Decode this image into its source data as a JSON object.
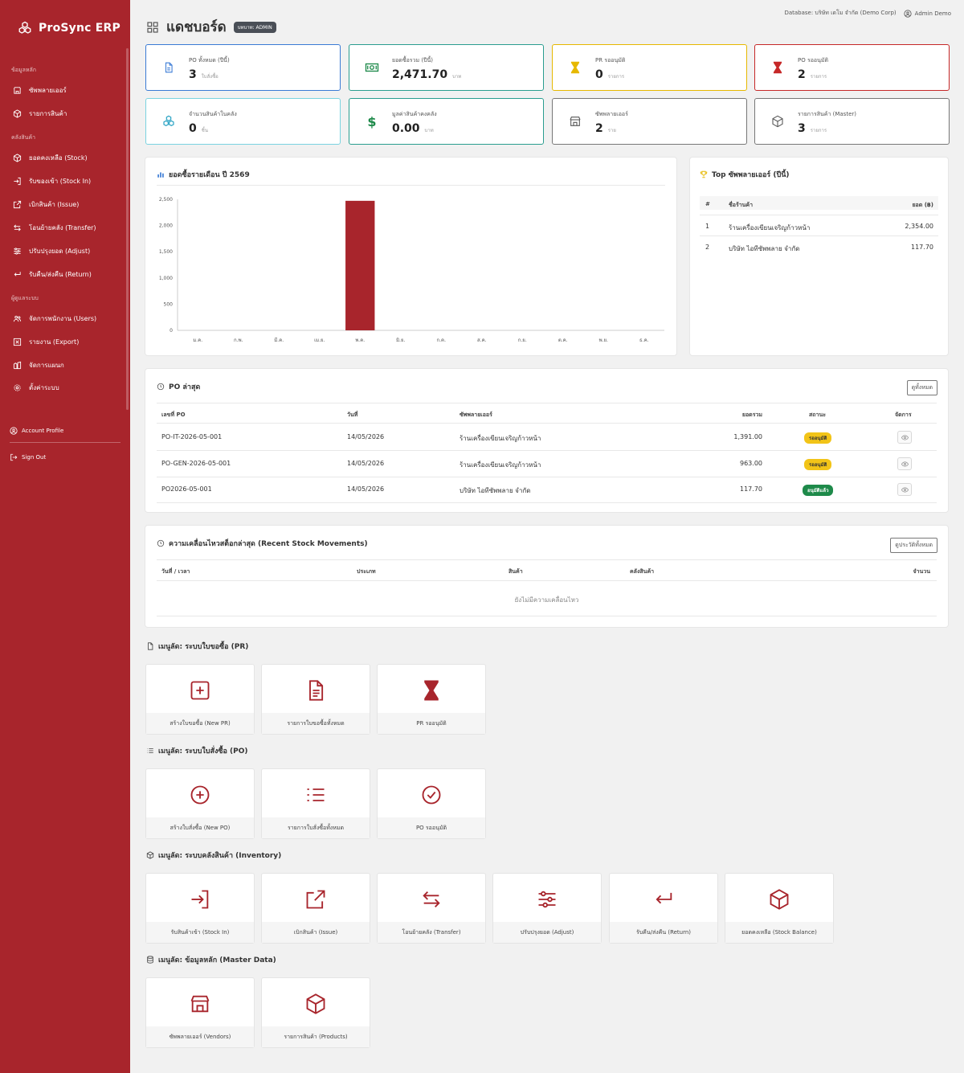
{
  "app": {
    "name": "ProSync ERP"
  },
  "colors": {
    "brand": "#a8252c",
    "accent_blue": "#3a7bd5",
    "accent_teal": "#2a9d8f",
    "accent_yellow": "#e6b800",
    "accent_red": "#c62828",
    "approved": "#1e8a4a",
    "pending": "#f2c418"
  },
  "sidebar": {
    "sections": [
      "ข้อมูลหลัก",
      "คลังสินค้า",
      "ผู้ดูแลระบบ"
    ],
    "items": [
      {
        "label": "ซัพพลายเออร์",
        "icon": "store-icon"
      },
      {
        "label": "รายการสินค้า",
        "icon": "box-icon"
      },
      {
        "label": "ยอดคงเหลือ (Stock)",
        "icon": "box-icon"
      },
      {
        "label": "รับของเข้า (Stock In)",
        "icon": "login-icon"
      },
      {
        "label": "เบิกสินค้า (Issue)",
        "icon": "external-icon"
      },
      {
        "label": "โอนย้ายคลัง (Transfer)",
        "icon": "transfer-icon"
      },
      {
        "label": "ปรับปรุงยอด (Adjust)",
        "icon": "sliders-icon"
      },
      {
        "label": "รับคืน/ส่งคืน (Return)",
        "icon": "return-icon"
      },
      {
        "label": "จัดการพนักงาน (Users)",
        "icon": "users-icon"
      },
      {
        "label": "รายงาน (Export)",
        "icon": "report-icon"
      },
      {
        "label": "จัดการแผนก",
        "icon": "department-icon"
      },
      {
        "label": "ตั้งค่าระบบ",
        "icon": "gear-icon"
      }
    ],
    "account": "Account Profile",
    "signout": "Sign Out"
  },
  "header": {
    "title": "แดชบอร์ด",
    "role_badge": "บทบาท: ADMIN",
    "database": "Database: บริษัท เดโม จำกัด (Demo Corp)",
    "user": "Admin Demo"
  },
  "stats": [
    {
      "label": "PO ทั้งหมด (ปีนี้)",
      "value": "3",
      "unit": "ใบสั่งซื้อ",
      "icon": "document-icon"
    },
    {
      "label": "ยอดซื้อรวม (ปีนี้)",
      "value": "2,471.70",
      "unit": "บาท",
      "icon": "cash-icon"
    },
    {
      "label": "PR รออนุมัติ",
      "value": "0",
      "unit": "รายการ",
      "icon": "hourglass-icon"
    },
    {
      "label": "PO รออนุมัติ",
      "value": "2",
      "unit": "รายการ",
      "icon": "hourglass-icon"
    },
    {
      "label": "จำนวนสินค้าในคลัง",
      "value": "0",
      "unit": "ชิ้น",
      "icon": "boxes-icon"
    },
    {
      "label": "มูลค่าสินค้าคงคลัง",
      "value": "0.00",
      "unit": "บาท",
      "icon": "dollar-icon"
    },
    {
      "label": "ซัพพลายเออร์",
      "value": "2",
      "unit": "ราย",
      "icon": "store-icon"
    },
    {
      "label": "รายการสินค้า (Master)",
      "value": "3",
      "unit": "รายการ",
      "icon": "box-icon"
    }
  ],
  "chart": {
    "title": "ยอดซื้อรายเดือน ปี 2569"
  },
  "chart_data": {
    "type": "bar",
    "title": "ยอดซื้อรายเดือน ปี 2569",
    "categories": [
      "ม.ค.",
      "ก.พ.",
      "มี.ค.",
      "เม.ย.",
      "พ.ค.",
      "มิ.ย.",
      "ก.ค.",
      "ส.ค.",
      "ก.ย.",
      "ต.ค.",
      "พ.ย.",
      "ธ.ค."
    ],
    "values": [
      0,
      0,
      0,
      0,
      2471.7,
      0,
      0,
      0,
      0,
      0,
      0,
      0
    ],
    "yticks": [
      "0",
      "500",
      "1,000",
      "1,500",
      "2,000",
      "2,500"
    ],
    "ylim": [
      0,
      2500
    ],
    "bar_color": "#a8252c",
    "grid": false
  },
  "top_vendors": {
    "title": "Top ซัพพลายเออร์ (ปีนี้)",
    "headers": [
      "#",
      "ชื่อร้านค้า",
      "ยอด (฿)"
    ],
    "rows": [
      {
        "rank": "1",
        "name": "ร้านเครื่องเขียนเจริญก้าวหน้า",
        "amount": "2,354.00"
      },
      {
        "rank": "2",
        "name": "บริษัท ไอทีซัพพลาย จำกัด",
        "amount": "117.70"
      }
    ]
  },
  "po_latest": {
    "title": "PO ล่าสุด",
    "view_all": "ดูทั้งหมด",
    "headers": [
      "เลขที่ PO",
      "วันที่",
      "ซัพพลายเออร์",
      "ยอดรวม",
      "สถานะ",
      "จัดการ"
    ],
    "rows": [
      {
        "po": "PO-IT-2026-05-001",
        "date": "14/05/2026",
        "vendor": "ร้านเครื่องเขียนเจริญก้าวหน้า",
        "total": "1,391.00",
        "status": "รออนุมัติ",
        "status_type": "pending"
      },
      {
        "po": "PO-GEN-2026-05-001",
        "date": "14/05/2026",
        "vendor": "ร้านเครื่องเขียนเจริญก้าวหน้า",
        "total": "963.00",
        "status": "รออนุมัติ",
        "status_type": "pending"
      },
      {
        "po": "PO2026-05-001",
        "date": "14/05/2026",
        "vendor": "บริษัท ไอทีซัพพลาย จำกัด",
        "total": "117.70",
        "status": "อนุมัติแล้ว",
        "status_type": "approved"
      }
    ]
  },
  "movements": {
    "title": "ความเคลื่อนไหวสต็อกล่าสุด (Recent Stock Movements)",
    "view_all": "ดูประวัติทั้งหมด",
    "headers": [
      "วันที่ / เวลา",
      "ประเภท",
      "สินค้า",
      "คลังสินค้า",
      "จำนวน"
    ],
    "empty": "ยังไม่มีความเคลื่อนไหว"
  },
  "quick_pr": {
    "title": "เมนูลัด: ระบบใบขอซื้อ (PR)",
    "items": [
      {
        "label": "สร้างใบขอซื้อ (New PR)",
        "icon": "plus-square-icon"
      },
      {
        "label": "รายการใบขอซื้อทั้งหมด",
        "icon": "document-list-icon"
      },
      {
        "label": "PR รออนุมัติ",
        "icon": "hourglass-icon"
      }
    ]
  },
  "quick_po": {
    "title": "เมนูลัด: ระบบใบสั่งซื้อ (PO)",
    "items": [
      {
        "label": "สร้างใบสั่งซื้อ (New PO)",
        "icon": "plus-circle-icon"
      },
      {
        "label": "รายการใบสั่งซื้อทั้งหมด",
        "icon": "list-icon"
      },
      {
        "label": "PO รออนุมัติ",
        "icon": "check-circle-icon"
      }
    ]
  },
  "quick_inv": {
    "title": "เมนูลัด: ระบบคลังสินค้า (Inventory)",
    "items": [
      {
        "label": "รับสินค้าเข้า (Stock In)",
        "icon": "login-icon"
      },
      {
        "label": "เบิกสินค้า (Issue)",
        "icon": "external-icon"
      },
      {
        "label": "โอนย้ายคลัง (Transfer)",
        "icon": "transfer-icon"
      },
      {
        "label": "ปรับปรุงยอด (Adjust)",
        "icon": "sliders-icon"
      },
      {
        "label": "รับคืน/ส่งคืน (Return)",
        "icon": "return-icon"
      },
      {
        "label": "ยอดคงเหลือ (Stock Balance)",
        "icon": "box-icon"
      }
    ]
  },
  "quick_master": {
    "title": "เมนูลัด: ข้อมูลหลัก (Master Data)",
    "items": [
      {
        "label": "ซัพพลายเออร์ (Vendors)",
        "icon": "store-icon"
      },
      {
        "label": "รายการสินค้า (Products)",
        "icon": "box-icon"
      }
    ]
  }
}
